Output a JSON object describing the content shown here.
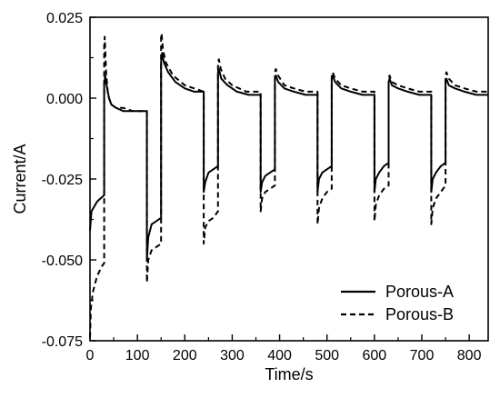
{
  "chart_data": {
    "type": "line",
    "title": "",
    "xlabel": "Time/s",
    "ylabel": "Current/A",
    "xlim": [
      0,
      840
    ],
    "ylim": [
      -0.075,
      0.025
    ],
    "x_ticks": [
      0,
      100,
      200,
      300,
      400,
      500,
      600,
      700,
      800
    ],
    "x_tick_labels": [
      "0",
      "100",
      "200",
      "300",
      "400",
      "500",
      "600",
      "700",
      "800"
    ],
    "y_ticks": [
      0.025,
      0.0,
      -0.025,
      -0.05,
      -0.075
    ],
    "y_tick_labels": [
      "0.025",
      "0.000",
      "-0.025",
      "-0.050",
      "-0.075"
    ],
    "grid": false,
    "legend_position": "bottom-right",
    "series": [
      {
        "name": "Porous-A",
        "line_style": "solid",
        "color": "#000000",
        "points": [
          [
            0,
            -0.041
          ],
          [
            3,
            -0.035
          ],
          [
            15,
            -0.032
          ],
          [
            30,
            -0.03
          ],
          [
            30,
            0.004
          ],
          [
            32,
            0.007
          ],
          [
            35,
            0.004
          ],
          [
            40,
            0.0
          ],
          [
            45,
            -0.002
          ],
          [
            55,
            -0.003
          ],
          [
            70,
            -0.004
          ],
          [
            90,
            -0.004
          ],
          [
            120,
            -0.004
          ],
          [
            120,
            -0.05
          ],
          [
            123,
            -0.043
          ],
          [
            130,
            -0.039
          ],
          [
            140,
            -0.038
          ],
          [
            150,
            -0.037
          ],
          [
            150,
            0.011
          ],
          [
            152,
            0.014
          ],
          [
            156,
            0.011
          ],
          [
            165,
            0.008
          ],
          [
            180,
            0.005
          ],
          [
            200,
            0.003
          ],
          [
            220,
            0.002
          ],
          [
            240,
            0.002
          ],
          [
            240,
            -0.029
          ],
          [
            243,
            -0.026
          ],
          [
            250,
            -0.023
          ],
          [
            260,
            -0.022
          ],
          [
            270,
            -0.021
          ],
          [
            270,
            0.008
          ],
          [
            272,
            0.009
          ],
          [
            277,
            0.006
          ],
          [
            290,
            0.004
          ],
          [
            310,
            0.002
          ],
          [
            335,
            0.001
          ],
          [
            360,
            0.001
          ],
          [
            360,
            -0.029
          ],
          [
            363,
            -0.026
          ],
          [
            370,
            -0.024
          ],
          [
            380,
            -0.023
          ],
          [
            390,
            -0.022
          ],
          [
            390,
            0.006
          ],
          [
            392,
            0.007
          ],
          [
            397,
            0.005
          ],
          [
            410,
            0.003
          ],
          [
            430,
            0.002
          ],
          [
            455,
            0.001
          ],
          [
            480,
            0.001
          ],
          [
            480,
            -0.029
          ],
          [
            483,
            -0.025
          ],
          [
            490,
            -0.023
          ],
          [
            500,
            -0.022
          ],
          [
            510,
            -0.021
          ],
          [
            510,
            0.006
          ],
          [
            512,
            0.007
          ],
          [
            517,
            0.005
          ],
          [
            530,
            0.003
          ],
          [
            550,
            0.002
          ],
          [
            575,
            0.001
          ],
          [
            600,
            0.001
          ],
          [
            600,
            -0.029
          ],
          [
            603,
            -0.025
          ],
          [
            610,
            -0.023
          ],
          [
            620,
            -0.021
          ],
          [
            630,
            -0.02
          ],
          [
            630,
            0.005
          ],
          [
            632,
            0.006
          ],
          [
            637,
            0.004
          ],
          [
            650,
            0.003
          ],
          [
            670,
            0.002
          ],
          [
            695,
            0.001
          ],
          [
            720,
            0.001
          ],
          [
            720,
            -0.029
          ],
          [
            723,
            -0.025
          ],
          [
            730,
            -0.023
          ],
          [
            740,
            -0.021
          ],
          [
            750,
            -0.02
          ],
          [
            750,
            0.005
          ],
          [
            752,
            0.006
          ],
          [
            757,
            0.004
          ],
          [
            770,
            0.003
          ],
          [
            790,
            0.002
          ],
          [
            815,
            0.001
          ],
          [
            840,
            0.001
          ]
        ]
      },
      {
        "name": "Porous-B",
        "line_style": "dashed",
        "color": "#000000",
        "points": [
          [
            0,
            -0.074
          ],
          [
            2,
            -0.065
          ],
          [
            6,
            -0.06
          ],
          [
            15,
            -0.055
          ],
          [
            25,
            -0.052
          ],
          [
            30,
            -0.051
          ],
          [
            30,
            0.016
          ],
          [
            31,
            0.019
          ],
          [
            34,
            0.008
          ],
          [
            38,
            0.001
          ],
          [
            45,
            -0.002
          ],
          [
            55,
            -0.003
          ],
          [
            70,
            -0.003
          ],
          [
            90,
            -0.004
          ],
          [
            120,
            -0.004
          ],
          [
            120,
            -0.057
          ],
          [
            123,
            -0.05
          ],
          [
            130,
            -0.047
          ],
          [
            140,
            -0.046
          ],
          [
            150,
            -0.045
          ],
          [
            150,
            0.019
          ],
          [
            151,
            0.02
          ],
          [
            154,
            0.015
          ],
          [
            160,
            0.011
          ],
          [
            175,
            0.007
          ],
          [
            200,
            0.004
          ],
          [
            220,
            0.003
          ],
          [
            240,
            0.002
          ],
          [
            240,
            -0.045
          ],
          [
            243,
            -0.04
          ],
          [
            250,
            -0.038
          ],
          [
            260,
            -0.037
          ],
          [
            270,
            -0.035
          ],
          [
            270,
            0.011
          ],
          [
            272,
            0.012
          ],
          [
            276,
            0.009
          ],
          [
            285,
            0.006
          ],
          [
            300,
            0.004
          ],
          [
            330,
            0.002
          ],
          [
            360,
            0.002
          ],
          [
            360,
            -0.035
          ],
          [
            363,
            -0.031
          ],
          [
            370,
            -0.029
          ],
          [
            380,
            -0.028
          ],
          [
            390,
            -0.027
          ],
          [
            390,
            0.008
          ],
          [
            392,
            0.009
          ],
          [
            397,
            0.007
          ],
          [
            410,
            0.004
          ],
          [
            430,
            0.003
          ],
          [
            455,
            0.002
          ],
          [
            480,
            0.002
          ],
          [
            480,
            -0.039
          ],
          [
            483,
            -0.034
          ],
          [
            490,
            -0.031
          ],
          [
            500,
            -0.029
          ],
          [
            510,
            -0.028
          ],
          [
            510,
            0.007
          ],
          [
            512,
            0.008
          ],
          [
            517,
            0.006
          ],
          [
            530,
            0.004
          ],
          [
            550,
            0.003
          ],
          [
            575,
            0.002
          ],
          [
            600,
            0.002
          ],
          [
            600,
            -0.038
          ],
          [
            603,
            -0.033
          ],
          [
            610,
            -0.03
          ],
          [
            620,
            -0.028
          ],
          [
            630,
            -0.027
          ],
          [
            630,
            0.006
          ],
          [
            632,
            0.007
          ],
          [
            637,
            0.005
          ],
          [
            650,
            0.004
          ],
          [
            670,
            0.003
          ],
          [
            695,
            0.002
          ],
          [
            720,
            0.002
          ],
          [
            720,
            -0.039
          ],
          [
            723,
            -0.034
          ],
          [
            730,
            -0.031
          ],
          [
            740,
            -0.029
          ],
          [
            750,
            -0.027
          ],
          [
            750,
            0.007
          ],
          [
            752,
            0.008
          ],
          [
            757,
            0.006
          ],
          [
            770,
            0.004
          ],
          [
            790,
            0.003
          ],
          [
            815,
            0.002
          ],
          [
            840,
            0.002
          ]
        ]
      }
    ]
  }
}
